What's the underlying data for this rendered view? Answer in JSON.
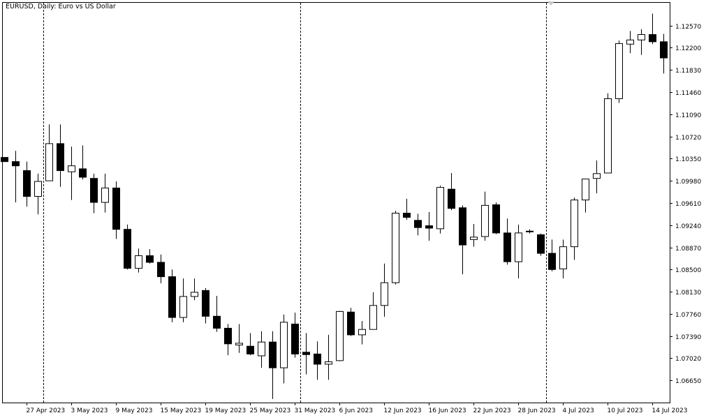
{
  "chart_data": {
    "type": "candlestick",
    "title": "EURUSD, Daily:  Euro vs US Dollar",
    "symbol": "EURUSD",
    "timeframe": "Daily",
    "description": "Euro vs US Dollar",
    "ylim": [
      1.0628,
      1.1295
    ],
    "y_ticks": [
      "1.12570",
      "1.12200",
      "1.11830",
      "1.11460",
      "1.11090",
      "1.10720",
      "1.10350",
      "1.09980",
      "1.09610",
      "1.09240",
      "1.08870",
      "1.08500",
      "1.08130",
      "1.07760",
      "1.07390",
      "1.07020",
      "1.06650"
    ],
    "x_tick_labels": [
      {
        "label": "27 Apr 2023",
        "date": "2023-04-27"
      },
      {
        "label": "3 May 2023",
        "date": "2023-05-03"
      },
      {
        "label": "9 May 2023",
        "date": "2023-05-09"
      },
      {
        "label": "15 May 2023",
        "date": "2023-05-15"
      },
      {
        "label": "19 May 2023",
        "date": "2023-05-19"
      },
      {
        "label": "25 May 2023",
        "date": "2023-05-25"
      },
      {
        "label": "31 May 2023",
        "date": "2023-05-31"
      },
      {
        "label": "6 Jun 2023",
        "date": "2023-06-06"
      },
      {
        "label": "12 Jun 2023",
        "date": "2023-06-12"
      },
      {
        "label": "16 Jun 2023",
        "date": "2023-06-16"
      },
      {
        "label": "22 Jun 2023",
        "date": "2023-06-22"
      },
      {
        "label": "28 Jun 2023",
        "date": "2023-06-28"
      },
      {
        "label": "4 Jul 2023",
        "date": "2023-07-04"
      },
      {
        "label": "10 Jul 2023",
        "date": "2023-07-10"
      },
      {
        "label": "14 Jul 2023",
        "date": "2023-07-14"
      }
    ],
    "period_separators": [
      "2023-05-01",
      "2023-06-01",
      "2023-07-03"
    ],
    "grid": false,
    "colors": {
      "background": "#ffffff",
      "bull_body": "#ffffff",
      "bear_body": "#000000",
      "outline": "#000000",
      "separator": "#000000"
    },
    "candles": [
      {
        "date": "2023-04-25",
        "o": 1.1037,
        "h": 1.1037,
        "l": 1.103,
        "c": 1.103
      },
      {
        "date": "2023-04-26",
        "o": 1.103,
        "h": 1.1048,
        "l": 1.0962,
        "c": 1.1023
      },
      {
        "date": "2023-04-27",
        "o": 1.1015,
        "h": 1.103,
        "l": 1.0955,
        "c": 1.0972
      },
      {
        "date": "2023-04-28",
        "o": 1.0972,
        "h": 1.101,
        "l": 1.0942,
        "c": 1.0997
      },
      {
        "date": "2023-05-01",
        "o": 1.0998,
        "h": 1.1092,
        "l": 1.0998,
        "c": 1.106
      },
      {
        "date": "2023-05-02",
        "o": 1.106,
        "h": 1.1092,
        "l": 1.0988,
        "c": 1.1015
      },
      {
        "date": "2023-05-03",
        "o": 1.1013,
        "h": 1.1055,
        "l": 1.0966,
        "c": 1.1023
      },
      {
        "date": "2023-05-04",
        "o": 1.1018,
        "h": 1.1057,
        "l": 1.1,
        "c": 1.1004
      },
      {
        "date": "2023-05-05",
        "o": 1.1002,
        "h": 1.101,
        "l": 1.0944,
        "c": 1.0962
      },
      {
        "date": "2023-05-08",
        "o": 1.0962,
        "h": 1.101,
        "l": 1.0945,
        "c": 1.0986
      },
      {
        "date": "2023-05-09",
        "o": 1.0986,
        "h": 1.0997,
        "l": 1.0901,
        "c": 1.0917
      },
      {
        "date": "2023-05-10",
        "o": 1.0917,
        "h": 1.0925,
        "l": 1.085,
        "c": 1.0852
      },
      {
        "date": "2023-05-11",
        "o": 1.0852,
        "h": 1.0885,
        "l": 1.0845,
        "c": 1.0873
      },
      {
        "date": "2023-05-12",
        "o": 1.0873,
        "h": 1.0884,
        "l": 1.086,
        "c": 1.0862
      },
      {
        "date": "2023-05-15",
        "o": 1.0862,
        "h": 1.0875,
        "l": 1.0827,
        "c": 1.0838
      },
      {
        "date": "2023-05-16",
        "o": 1.0838,
        "h": 1.085,
        "l": 1.0762,
        "c": 1.077
      },
      {
        "date": "2023-05-17",
        "o": 1.077,
        "h": 1.0835,
        "l": 1.0762,
        "c": 1.0805
      },
      {
        "date": "2023-05-18",
        "o": 1.0805,
        "h": 1.0835,
        "l": 1.0799,
        "c": 1.0812
      },
      {
        "date": "2023-05-19",
        "o": 1.0815,
        "h": 1.0819,
        "l": 1.076,
        "c": 1.0772
      },
      {
        "date": "2023-05-22",
        "o": 1.0772,
        "h": 1.0806,
        "l": 1.0746,
        "c": 1.0752
      },
      {
        "date": "2023-05-23",
        "o": 1.0752,
        "h": 1.0759,
        "l": 1.0707,
        "c": 1.0726
      },
      {
        "date": "2023-05-24",
        "o": 1.0724,
        "h": 1.0759,
        "l": 1.0711,
        "c": 1.0727
      },
      {
        "date": "2023-05-25",
        "o": 1.0722,
        "h": 1.0744,
        "l": 1.0707,
        "c": 1.0709
      },
      {
        "date": "2023-05-26",
        "o": 1.0706,
        "h": 1.0747,
        "l": 1.0686,
        "c": 1.0729
      },
      {
        "date": "2023-05-29",
        "o": 1.0729,
        "h": 1.0747,
        "l": 1.0634,
        "c": 1.0686
      },
      {
        "date": "2023-05-30",
        "o": 1.0686,
        "h": 1.0775,
        "l": 1.066,
        "c": 1.0762
      },
      {
        "date": "2023-05-31",
        "o": 1.0759,
        "h": 1.0778,
        "l": 1.0703,
        "c": 1.0709
      },
      {
        "date": "2023-06-01",
        "o": 1.0712,
        "h": 1.0744,
        "l": 1.0675,
        "c": 1.0708
      },
      {
        "date": "2023-06-02",
        "o": 1.0709,
        "h": 1.073,
        "l": 1.0666,
        "c": 1.0692
      },
      {
        "date": "2023-06-05",
        "o": 1.0692,
        "h": 1.0741,
        "l": 1.0666,
        "c": 1.0696
      },
      {
        "date": "2023-06-06",
        "o": 1.0698,
        "h": 1.0781,
        "l": 1.0697,
        "c": 1.078
      },
      {
        "date": "2023-06-07",
        "o": 1.0779,
        "h": 1.0786,
        "l": 1.0739,
        "c": 1.0741
      },
      {
        "date": "2023-06-08",
        "o": 1.0741,
        "h": 1.0764,
        "l": 1.0725,
        "c": 1.075
      },
      {
        "date": "2023-06-09",
        "o": 1.075,
        "h": 1.0812,
        "l": 1.075,
        "c": 1.079
      },
      {
        "date": "2023-06-12",
        "o": 1.079,
        "h": 1.086,
        "l": 1.0771,
        "c": 1.0828
      },
      {
        "date": "2023-06-13",
        "o": 1.0828,
        "h": 1.0948,
        "l": 1.0825,
        "c": 1.0944
      },
      {
        "date": "2023-06-14",
        "o": 1.0944,
        "h": 1.0968,
        "l": 1.0933,
        "c": 1.0937
      },
      {
        "date": "2023-06-15",
        "o": 1.0932,
        "h": 1.0943,
        "l": 1.0907,
        "c": 1.092
      },
      {
        "date": "2023-06-16",
        "o": 1.0923,
        "h": 1.0946,
        "l": 1.0898,
        "c": 1.0919
      },
      {
        "date": "2023-06-19",
        "o": 1.0918,
        "h": 1.099,
        "l": 1.091,
        "c": 1.0987
      },
      {
        "date": "2023-06-20",
        "o": 1.0984,
        "h": 1.1011,
        "l": 1.0949,
        "c": 1.0952
      },
      {
        "date": "2023-06-21",
        "o": 1.0953,
        "h": 1.0957,
        "l": 1.0842,
        "c": 1.0891
      },
      {
        "date": "2023-06-22",
        "o": 1.09,
        "h": 1.0926,
        "l": 1.0888,
        "c": 1.0904
      },
      {
        "date": "2023-06-23",
        "o": 1.0905,
        "h": 1.098,
        "l": 1.0898,
        "c": 1.0957
      },
      {
        "date": "2023-06-26",
        "o": 1.0958,
        "h": 1.0962,
        "l": 1.0909,
        "c": 1.0911
      },
      {
        "date": "2023-06-27",
        "o": 1.0911,
        "h": 1.0935,
        "l": 1.0858,
        "c": 1.0863
      },
      {
        "date": "2023-06-28",
        "o": 1.0863,
        "h": 1.0925,
        "l": 1.0835,
        "c": 1.0911
      },
      {
        "date": "2023-06-29",
        "o": 1.0914,
        "h": 1.0917,
        "l": 1.091,
        "c": 1.0913
      },
      {
        "date": "2023-06-30",
        "o": 1.0908,
        "h": 1.091,
        "l": 1.0873,
        "c": 1.0877
      },
      {
        "date": "2023-07-03",
        "o": 1.0877,
        "h": 1.09,
        "l": 1.0847,
        "c": 1.085
      },
      {
        "date": "2023-07-04",
        "o": 1.0851,
        "h": 1.09,
        "l": 1.0835,
        "c": 1.0888
      },
      {
        "date": "2023-07-05",
        "o": 1.0888,
        "h": 1.097,
        "l": 1.0866,
        "c": 1.0966
      },
      {
        "date": "2023-07-06",
        "o": 1.0966,
        "h": 1.1001,
        "l": 1.0945,
        "c": 1.1001
      },
      {
        "date": "2023-07-07",
        "o": 1.1002,
        "h": 1.1032,
        "l": 1.0977,
        "c": 1.101
      },
      {
        "date": "2023-07-10",
        "o": 1.1011,
        "h": 1.1144,
        "l": 1.1011,
        "c": 1.1135
      },
      {
        "date": "2023-07-11",
        "o": 1.1135,
        "h": 1.1232,
        "l": 1.1128,
        "c": 1.1227
      },
      {
        "date": "2023-07-12",
        "o": 1.1226,
        "h": 1.1248,
        "l": 1.1211,
        "c": 1.1233
      },
      {
        "date": "2023-07-13",
        "o": 1.1233,
        "h": 1.1251,
        "l": 1.1208,
        "c": 1.1242
      },
      {
        "date": "2023-07-14",
        "o": 1.1242,
        "h": 1.1277,
        "l": 1.1226,
        "c": 1.123
      },
      {
        "date": "2023-07-17",
        "o": 1.123,
        "h": 1.1243,
        "l": 1.1177,
        "c": 1.1203
      }
    ]
  }
}
